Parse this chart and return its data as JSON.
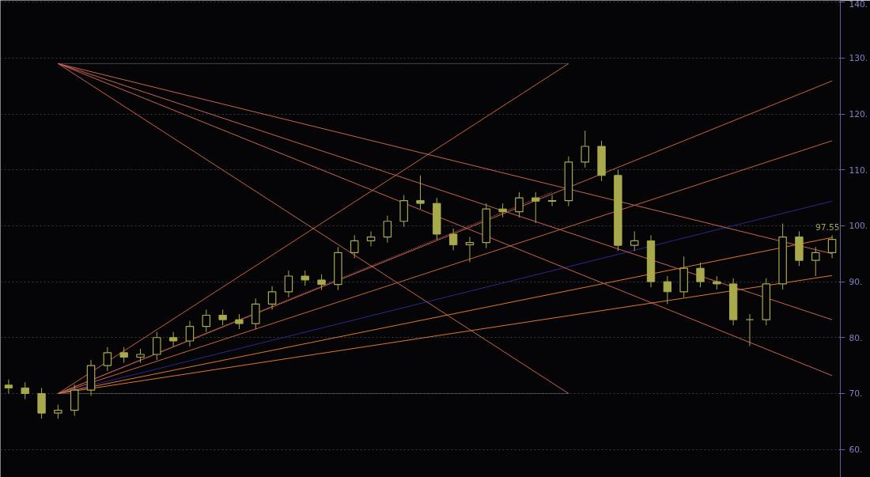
{
  "chart_data": {
    "type": "candlestick",
    "color": "#a8a84c",
    "categories": [
      null,
      null,
      null,
      null,
      null,
      null,
      null,
      null,
      null,
      null,
      null,
      null,
      null,
      null,
      null,
      null,
      null,
      null,
      null,
      null,
      null,
      null,
      null,
      null,
      null,
      null,
      null,
      null,
      null,
      null,
      null,
      null,
      null,
      null,
      null,
      null,
      null,
      null,
      null,
      null,
      null,
      null,
      null,
      null,
      null,
      null,
      null,
      null,
      null,
      null,
      null
    ],
    "ohlc": [
      [
        71.5,
        72.5,
        70,
        71
      ],
      [
        71,
        72,
        69,
        70
      ],
      [
        70,
        71,
        65.5,
        66.5
      ],
      [
        66.5,
        68,
        65.5,
        67
      ],
      [
        67,
        71.6,
        66,
        70.6
      ],
      [
        70.6,
        76,
        69.6,
        75
      ],
      [
        75,
        78.3,
        74,
        77.3
      ],
      [
        77.3,
        78.3,
        75.5,
        76.5
      ],
      [
        76.5,
        78,
        75.5,
        77
      ],
      [
        77,
        81,
        76,
        80
      ],
      [
        80,
        81,
        78.4,
        79.4
      ],
      [
        79.4,
        83,
        78.4,
        82
      ],
      [
        82,
        85,
        81,
        84
      ],
      [
        84,
        85,
        82.2,
        83.2
      ],
      [
        83.2,
        84.2,
        81.5,
        82.5
      ],
      [
        82.5,
        87,
        81.5,
        86
      ],
      [
        86,
        89.2,
        85,
        88.2
      ],
      [
        88.2,
        92,
        87.2,
        91
      ],
      [
        91,
        92,
        89.3,
        90.3
      ],
      [
        90.3,
        91.3,
        88.5,
        89.5
      ],
      [
        89.5,
        96.2,
        88.5,
        95.2
      ],
      [
        95.2,
        98.3,
        94.2,
        97.3
      ],
      [
        97.3,
        99,
        96.3,
        98
      ],
      [
        98,
        101.8,
        97,
        100.8
      ],
      [
        100.8,
        105.5,
        99.8,
        104.5
      ],
      [
        104.5,
        109,
        103,
        104
      ],
      [
        104,
        105,
        97.5,
        98.5
      ],
      [
        98.5,
        99.5,
        95.6,
        96.6
      ],
      [
        96.6,
        98,
        93.5,
        97
      ],
      [
        97,
        104,
        96,
        103
      ],
      [
        103,
        104,
        101.5,
        102.5
      ],
      [
        102.5,
        106,
        101.5,
        105
      ],
      [
        105,
        106,
        100.5,
        104.4
      ],
      [
        104.4,
        105.5,
        103.5,
        104.5
      ],
      [
        104.5,
        112.4,
        103.5,
        111.4
      ],
      [
        111.4,
        117,
        110.4,
        114.2
      ],
      [
        114.2,
        115.2,
        108,
        109
      ],
      [
        109,
        110,
        95.5,
        96.5
      ],
      [
        96.5,
        99,
        95.5,
        97.3
      ],
      [
        97.3,
        98.3,
        89,
        90
      ],
      [
        90,
        91,
        86,
        88.2
      ],
      [
        88.2,
        94.5,
        87.2,
        92.4
      ],
      [
        92.4,
        93.4,
        89,
        90
      ],
      [
        90,
        91,
        88.6,
        89.6
      ],
      [
        89.6,
        90.6,
        82.2,
        83.2
      ],
      [
        83.2,
        84.2,
        78.5,
        83.2
      ],
      [
        83.2,
        90.6,
        82.2,
        89.6
      ],
      [
        89.6,
        100.4,
        88.6,
        98
      ],
      [
        98,
        99,
        92.8,
        93.8
      ],
      [
        93.8,
        96.2,
        91,
        95.2
      ],
      [
        95.2,
        98.3,
        94.2,
        97.55
      ]
    ],
    "series": [
      {
        "type": "line",
        "color": "#c8643c",
        "values": [
          null,
          null,
          null,
          70,
          null,
          null,
          null,
          null,
          null,
          null,
          null,
          null,
          null,
          null,
          null,
          null,
          null,
          null,
          null,
          null,
          null,
          null,
          null,
          null,
          null,
          null,
          null,
          null,
          null,
          null,
          null,
          null,
          null,
          null,
          null,
          null,
          null,
          null,
          null,
          null,
          null,
          null,
          null,
          null,
          null,
          null,
          null,
          null,
          null,
          null,
          125.9
        ]
      },
      {
        "type": "line",
        "color": "#c8643c",
        "values": [
          null,
          null,
          null,
          70,
          null,
          null,
          null,
          null,
          null,
          null,
          null,
          null,
          null,
          null,
          null,
          null,
          null,
          null,
          null,
          null,
          null,
          null,
          null,
          null,
          null,
          null,
          null,
          null,
          null,
          null,
          null,
          null,
          null,
          null,
          null,
          null,
          null,
          null,
          null,
          null,
          null,
          null,
          null,
          null,
          null,
          null,
          null,
          null,
          null,
          null,
          115.2
        ]
      },
      {
        "type": "line",
        "color": "#28288c",
        "values": [
          null,
          null,
          null,
          70,
          null,
          null,
          null,
          null,
          null,
          null,
          null,
          null,
          null,
          null,
          null,
          null,
          null,
          null,
          null,
          null,
          null,
          null,
          null,
          null,
          null,
          null,
          null,
          null,
          null,
          null,
          null,
          null,
          null,
          null,
          null,
          null,
          null,
          null,
          null,
          null,
          null,
          null,
          null,
          null,
          null,
          null,
          null,
          null,
          null,
          null,
          104.4
        ]
      },
      {
        "type": "line",
        "color": "#e07828",
        "values": [
          null,
          null,
          null,
          70,
          null,
          null,
          null,
          null,
          null,
          null,
          null,
          null,
          null,
          null,
          null,
          null,
          null,
          null,
          null,
          null,
          null,
          null,
          null,
          null,
          null,
          null,
          null,
          null,
          null,
          null,
          null,
          null,
          null,
          null,
          null,
          null,
          null,
          null,
          null,
          null,
          null,
          null,
          null,
          null,
          null,
          null,
          null,
          null,
          null,
          null,
          97.9
        ]
      },
      {
        "type": "line",
        "color": "#e07828",
        "values": [
          null,
          null,
          null,
          70,
          null,
          null,
          null,
          null,
          null,
          null,
          null,
          null,
          null,
          null,
          null,
          null,
          null,
          null,
          null,
          null,
          null,
          null,
          null,
          null,
          null,
          null,
          null,
          null,
          null,
          null,
          null,
          null,
          null,
          null,
          null,
          null,
          null,
          null,
          null,
          null,
          null,
          null,
          null,
          null,
          null,
          null,
          null,
          null,
          null,
          null,
          91.1
        ]
      },
      {
        "type": "line",
        "color": "#c8643c",
        "values": [
          null,
          null,
          null,
          70,
          null,
          null,
          null,
          null,
          null,
          null,
          null,
          null,
          null,
          null,
          null,
          null,
          null,
          null,
          null,
          null,
          null,
          null,
          null,
          null,
          null,
          null,
          null,
          null,
          null,
          null,
          null,
          null,
          null,
          null,
          129,
          null,
          null,
          null,
          null,
          null,
          null,
          null,
          null,
          null,
          null,
          null,
          null,
          null,
          null,
          null,
          null
        ]
      },
      {
        "type": "line",
        "color": "#c86450",
        "values": [
          null,
          null,
          null,
          129,
          null,
          null,
          null,
          null,
          null,
          null,
          null,
          null,
          null,
          null,
          null,
          null,
          null,
          null,
          null,
          null,
          null,
          null,
          null,
          null,
          null,
          null,
          null,
          null,
          null,
          null,
          null,
          null,
          null,
          null,
          null,
          null,
          null,
          null,
          null,
          null,
          null,
          null,
          null,
          null,
          null,
          null,
          null,
          null,
          null,
          null,
          95.0
        ]
      },
      {
        "type": "line",
        "color": "#c86450",
        "values": [
          null,
          null,
          null,
          129,
          null,
          null,
          null,
          null,
          null,
          null,
          null,
          null,
          null,
          null,
          null,
          null,
          null,
          null,
          null,
          null,
          null,
          null,
          null,
          null,
          null,
          null,
          null,
          null,
          null,
          null,
          null,
          null,
          null,
          null,
          null,
          null,
          null,
          null,
          null,
          null,
          null,
          null,
          null,
          null,
          null,
          null,
          null,
          null,
          null,
          null,
          83.2
        ]
      },
      {
        "type": "line",
        "color": "#c86450",
        "values": [
          null,
          null,
          null,
          129,
          null,
          null,
          null,
          null,
          null,
          null,
          null,
          null,
          null,
          null,
          null,
          null,
          null,
          null,
          null,
          null,
          null,
          null,
          null,
          null,
          null,
          null,
          null,
          null,
          null,
          null,
          null,
          null,
          null,
          null,
          null,
          null,
          null,
          null,
          null,
          null,
          null,
          null,
          null,
          null,
          null,
          null,
          null,
          null,
          null,
          null,
          73.2
        ]
      },
      {
        "type": "line",
        "color": "#c86450",
        "values": [
          null,
          null,
          null,
          129,
          null,
          null,
          null,
          null,
          null,
          null,
          null,
          null,
          null,
          null,
          null,
          null,
          null,
          null,
          null,
          null,
          null,
          null,
          null,
          null,
          null,
          null,
          null,
          null,
          null,
          null,
          null,
          null,
          null,
          null,
          70,
          null,
          null,
          null,
          null,
          null,
          null,
          null,
          null,
          null,
          null,
          null,
          null,
          null,
          null,
          null,
          null
        ]
      },
      {
        "type": "line",
        "color": "#c86478",
        "line_style": "dotted",
        "values": [
          null,
          null,
          null,
          70,
          null,
          null,
          null,
          null,
          null,
          null,
          null,
          null,
          null,
          null,
          null,
          null,
          null,
          null,
          null,
          null,
          null,
          null,
          null,
          null,
          null,
          null,
          null,
          null,
          null,
          null,
          null,
          null,
          null,
          106.0,
          null,
          null,
          null,
          null,
          null,
          null,
          null,
          null,
          null,
          null,
          null,
          null,
          null,
          null,
          null,
          null,
          null
        ]
      },
      {
        "type": "line",
        "color": "#808080",
        "line_style": "dotted",
        "values": [
          null,
          null,
          null,
          129,
          null,
          null,
          null,
          null,
          null,
          null,
          null,
          null,
          null,
          null,
          null,
          null,
          null,
          null,
          null,
          null,
          null,
          null,
          null,
          null,
          null,
          null,
          null,
          null,
          null,
          null,
          null,
          null,
          null,
          null,
          129,
          null,
          null,
          null,
          null,
          null,
          null,
          null,
          null,
          null,
          null,
          null,
          null,
          null,
          null,
          null,
          null
        ]
      },
      {
        "type": "line",
        "color": "#808080",
        "line_style": "dotted",
        "values": [
          null,
          null,
          null,
          70,
          null,
          null,
          null,
          null,
          null,
          null,
          null,
          null,
          null,
          null,
          null,
          null,
          null,
          null,
          null,
          null,
          null,
          null,
          null,
          null,
          null,
          null,
          null,
          null,
          null,
          null,
          null,
          null,
          null,
          null,
          70,
          null,
          null,
          null,
          null,
          null,
          null,
          null,
          null,
          null,
          null,
          null,
          null,
          null,
          null,
          null,
          null
        ]
      }
    ],
    "annotations": [
      "97.55"
    ],
    "ylim": [
      55,
      140.3
    ],
    "yticks": [
      {
        "value": 60,
        "label": "60."
      },
      {
        "value": 70,
        "label": "70."
      },
      {
        "value": 80,
        "label": "80."
      },
      {
        "value": 90,
        "label": "90."
      },
      {
        "value": 100,
        "label": "100."
      },
      {
        "value": 110,
        "label": "110."
      },
      {
        "value": 120,
        "label": "120."
      },
      {
        "value": 130,
        "label": "130."
      },
      {
        "value": 140,
        "label": "140."
      }
    ],
    "tick_labels": "y",
    "grid": "y"
  }
}
